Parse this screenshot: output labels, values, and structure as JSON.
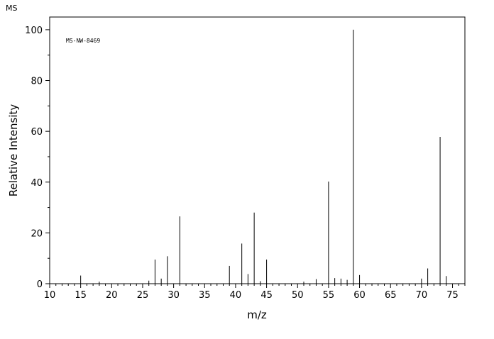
{
  "header": {
    "corner_label": "MS"
  },
  "chart_data": {
    "type": "bar",
    "title": "",
    "annotation": "MS-NW-8469",
    "xlabel": "m/z",
    "ylabel": "Relative Intensity",
    "xlim": [
      10,
      77
    ],
    "ylim": [
      0,
      105
    ],
    "x_ticks": [
      10,
      15,
      20,
      25,
      30,
      35,
      40,
      45,
      50,
      55,
      60,
      65,
      70,
      75
    ],
    "y_ticks": [
      0,
      20,
      40,
      60,
      80,
      100
    ],
    "grid": false,
    "peaks": [
      {
        "mz": 15,
        "intensity": 3.2
      },
      {
        "mz": 18,
        "intensity": 0.8
      },
      {
        "mz": 26,
        "intensity": 1.2
      },
      {
        "mz": 27,
        "intensity": 9.5
      },
      {
        "mz": 28,
        "intensity": 2.0
      },
      {
        "mz": 29,
        "intensity": 10.8
      },
      {
        "mz": 31,
        "intensity": 26.5
      },
      {
        "mz": 39,
        "intensity": 7.0
      },
      {
        "mz": 41,
        "intensity": 15.8
      },
      {
        "mz": 42,
        "intensity": 3.8
      },
      {
        "mz": 43,
        "intensity": 28.0
      },
      {
        "mz": 44,
        "intensity": 1.0
      },
      {
        "mz": 45,
        "intensity": 9.5
      },
      {
        "mz": 51,
        "intensity": 0.8
      },
      {
        "mz": 53,
        "intensity": 1.8
      },
      {
        "mz": 55,
        "intensity": 40.2
      },
      {
        "mz": 56,
        "intensity": 2.2
      },
      {
        "mz": 57,
        "intensity": 2.0
      },
      {
        "mz": 58,
        "intensity": 1.5
      },
      {
        "mz": 59,
        "intensity": 100.0
      },
      {
        "mz": 60,
        "intensity": 3.4
      },
      {
        "mz": 70,
        "intensity": 2.0
      },
      {
        "mz": 71,
        "intensity": 6.0
      },
      {
        "mz": 73,
        "intensity": 57.8
      },
      {
        "mz": 74,
        "intensity": 3.0
      }
    ]
  }
}
